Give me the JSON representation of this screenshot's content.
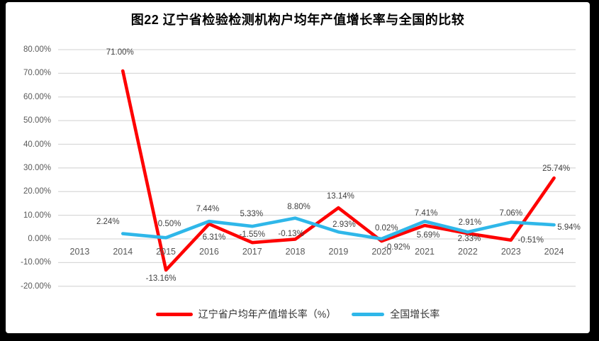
{
  "frame": {
    "background": "#000000",
    "canvas": "#ffffff"
  },
  "chart_data": {
    "type": "line",
    "title": "图22  辽宁省检验检测机构户均年产值增长率与全国的比较",
    "categories": [
      "2013",
      "2014",
      "2015",
      "2016",
      "2017",
      "2018",
      "2019",
      "2020",
      "2021",
      "2022",
      "2023",
      "2024"
    ],
    "y_ticks": [
      "80.00%",
      "70.00%",
      "60.00%",
      "50.00%",
      "40.00%",
      "30.00%",
      "20.00%",
      "10.00%",
      "0.00%",
      "-10.00%",
      "-20.00%"
    ],
    "ylim": [
      -20,
      80
    ],
    "grid": "horizontal",
    "gridline_color": "#d9d9d9",
    "axis_text_color": "#595959",
    "label_text_color": "#3f3f3f",
    "legend_position": "bottom",
    "series": [
      {
        "name": "辽宁省户均年产值增长率（%）",
        "color": "#fe0000",
        "values": [
          null,
          71.0,
          -13.16,
          6.31,
          -1.55,
          -0.13,
          13.14,
          -0.92,
          5.69,
          2.33,
          -0.51,
          25.74
        ],
        "labels": [
          null,
          "71.00%",
          "-13.16%",
          "6.31%",
          "-1.55%",
          "-0.13%",
          "13.14%",
          "-0.92%",
          "5.69%",
          "2.33%",
          "-0.51%",
          "25.74%"
        ],
        "label_offsets": [
          null,
          [
            -4,
            -26
          ],
          [
            -7,
            12
          ],
          [
            7,
            19
          ],
          [
            0,
            -11
          ],
          [
            -6,
            -7
          ],
          [
            3,
            -16
          ],
          [
            22,
            9
          ],
          [
            5,
            14
          ],
          [
            2,
            8
          ],
          [
            28,
            0
          ],
          [
            3,
            -13
          ]
        ]
      },
      {
        "name": "全国增长率",
        "color": "#2fb7e9",
        "values": [
          null,
          2.24,
          0.5,
          7.44,
          5.33,
          8.8,
          2.93,
          0.02,
          7.41,
          2.91,
          7.06,
          5.94
        ],
        "labels": [
          null,
          "2.24%",
          "0.50%",
          "7.44%",
          "5.33%",
          "8.80%",
          "2.93%",
          "0.02%",
          "7.41%",
          "2.91%",
          "7.06%",
          "5.94%"
        ],
        "label_offsets": [
          null,
          [
            -21,
            -17
          ],
          [
            5,
            -19
          ],
          [
            -2,
            -17
          ],
          [
            -1,
            -17
          ],
          [
            5,
            -16
          ],
          [
            8,
            -10
          ],
          [
            7,
            -15
          ],
          [
            2,
            -11
          ],
          [
            3,
            -13
          ],
          [
            0,
            -12
          ],
          [
            21,
            4
          ]
        ]
      }
    ]
  }
}
